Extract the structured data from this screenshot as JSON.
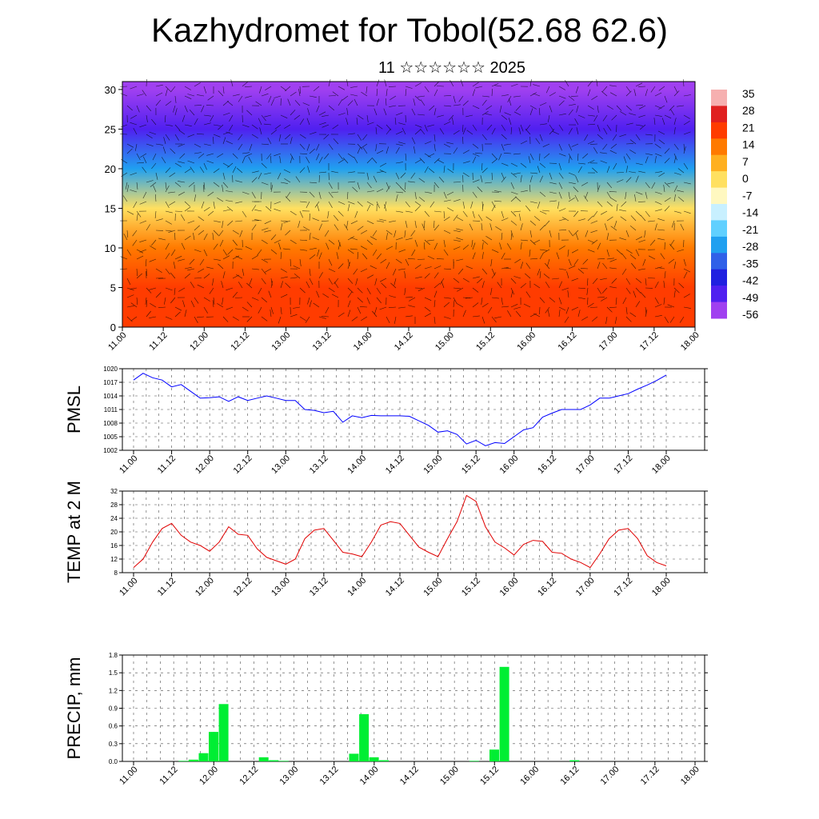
{
  "page": {
    "title": "Kazhydromet for Tobol(52.68 62.6)",
    "subtitle": "11 ☆☆☆☆☆☆ 2025"
  },
  "chart_data": [
    {
      "type": "heatmap",
      "name": "cross-section",
      "title": "",
      "xlabel": "",
      "ylabel": "",
      "x_ticks": [
        "11.00",
        "11.12",
        "12.00",
        "12.12",
        "13.00",
        "13.12",
        "14.00",
        "14.12",
        "15.00",
        "15.12",
        "16.00",
        "16.12",
        "17.00",
        "17.12",
        "18.00"
      ],
      "y_ticks": [
        "0",
        "5",
        "10",
        "15",
        "20",
        "25",
        "30"
      ],
      "ylim": [
        0,
        31
      ],
      "colorbar": {
        "labels": [
          "35",
          "28",
          "21",
          "14",
          "7",
          "0",
          "-7",
          "-14",
          "-21",
          "-28",
          "-35",
          "-42",
          "-49",
          "-56"
        ],
        "colors_warm_to_cold": [
          "#f6b0b0",
          "#e02020",
          "#ff3c00",
          "#ff7a00",
          "#ffb020",
          "#ffe060",
          "#fff8c0",
          "#c8f0ff",
          "#60d0ff",
          "#20a0f0",
          "#3060e8",
          "#2020e0",
          "#5020f0",
          "#a040f0"
        ]
      },
      "temperature_by_level": {
        "levels": [
          0,
          5,
          10,
          15,
          20,
          25,
          30
        ],
        "values": [
          24,
          21,
          12,
          -2,
          -30,
          -52,
          -56
        ]
      },
      "overlay": "wind barbs"
    },
    {
      "type": "line",
      "name": "pmsl",
      "ylabel": "PMSL",
      "ylim": [
        1002,
        1020
      ],
      "y_ticks": [
        "1002",
        "1005",
        "1008",
        "1011",
        "1014",
        "1017",
        "1020"
      ],
      "x_ticks": [
        "11.00",
        "11.12",
        "12.00",
        "12.12",
        "13.00",
        "13.12",
        "14.00",
        "14.12",
        "15.00",
        "15.12",
        "16.00",
        "16.12",
        "17.00",
        "17.12",
        "18.00"
      ],
      "color": "#0000ff",
      "series": [
        {
          "values": [
            1017.5,
            1019,
            1018,
            1017.5,
            1016,
            1016.5,
            1015,
            1013.5,
            1013.6,
            1013.8,
            1012.8,
            1013.8,
            1013,
            1013.5,
            1014,
            1013.5,
            1013,
            1013,
            1011,
            1010.8,
            1010.3,
            1010.6,
            1008.2,
            1009.6,
            1009.2,
            1009.7,
            1009.6,
            1009.6,
            1009.6,
            1009.5,
            1008.5,
            1007.5,
            1006,
            1006.3,
            1005.5,
            1003.4,
            1004.2,
            1003,
            1003.7,
            1003.5,
            1005,
            1006.5,
            1007,
            1009.3,
            1010.2,
            1011,
            1011,
            1011,
            1012,
            1013.5,
            1013.5,
            1014,
            1014.5,
            1015.5,
            1016.4,
            1017.4,
            1018.6
          ]
        }
      ]
    },
    {
      "type": "line",
      "name": "temp2m",
      "ylabel": "TEMP at 2 M",
      "ylim": [
        8,
        32
      ],
      "y_ticks": [
        "8",
        "12",
        "16",
        "20",
        "24",
        "28",
        "32"
      ],
      "x_ticks": [
        "11.00",
        "11.12",
        "12.00",
        "12.12",
        "13.00",
        "13.12",
        "14.00",
        "14.12",
        "15.00",
        "15.12",
        "16.00",
        "16.12",
        "17.00",
        "17.12",
        "18.00"
      ],
      "color": "#e00000",
      "series": [
        {
          "values": [
            9.5,
            12,
            17,
            21,
            22.5,
            19,
            17,
            16,
            14.3,
            17,
            21.5,
            19.3,
            19,
            15,
            12.5,
            11.5,
            10.5,
            12,
            18,
            20.5,
            21,
            17.5,
            14,
            13.5,
            12.7,
            17,
            22,
            23,
            22.5,
            19,
            15.5,
            14,
            12.7,
            18,
            23,
            30.7,
            29,
            21.5,
            17,
            15.3,
            13.2,
            16.3,
            17.5,
            17.2,
            14,
            13.7,
            12,
            11,
            9.5,
            13.5,
            18,
            20.5,
            21,
            18,
            13,
            11,
            10
          ]
        }
      ]
    },
    {
      "type": "bar",
      "name": "precip",
      "ylabel": "PRECIP, mm",
      "ylim": [
        0,
        1.8
      ],
      "y_ticks": [
        "0.0",
        "0.3",
        "0.6",
        "0.9",
        "1.2",
        "1.5",
        "1.8"
      ],
      "x_ticks": [
        "11.00",
        "11.12",
        "12.00",
        "12.12",
        "13.00",
        "13.12",
        "14.00",
        "14.12",
        "15.00",
        "15.12",
        "16.00",
        "16.12",
        "17.00",
        "17.12",
        "18.00"
      ],
      "color": "#00ee33",
      "values": [
        0,
        0,
        0,
        0,
        0,
        0.01,
        0.03,
        0.14,
        0.5,
        0.97,
        0,
        0,
        0,
        0.07,
        0.02,
        0.01,
        0,
        0,
        0,
        0,
        0,
        0,
        0.13,
        0.8,
        0.07,
        0.02,
        0,
        0,
        0,
        0,
        0,
        0,
        0,
        0,
        0.01,
        0,
        0.2,
        1.6,
        0,
        0,
        0,
        0,
        0,
        0,
        0.02,
        0,
        0,
        0,
        0,
        0,
        0,
        0,
        0,
        0,
        0,
        0,
        0
      ]
    }
  ]
}
